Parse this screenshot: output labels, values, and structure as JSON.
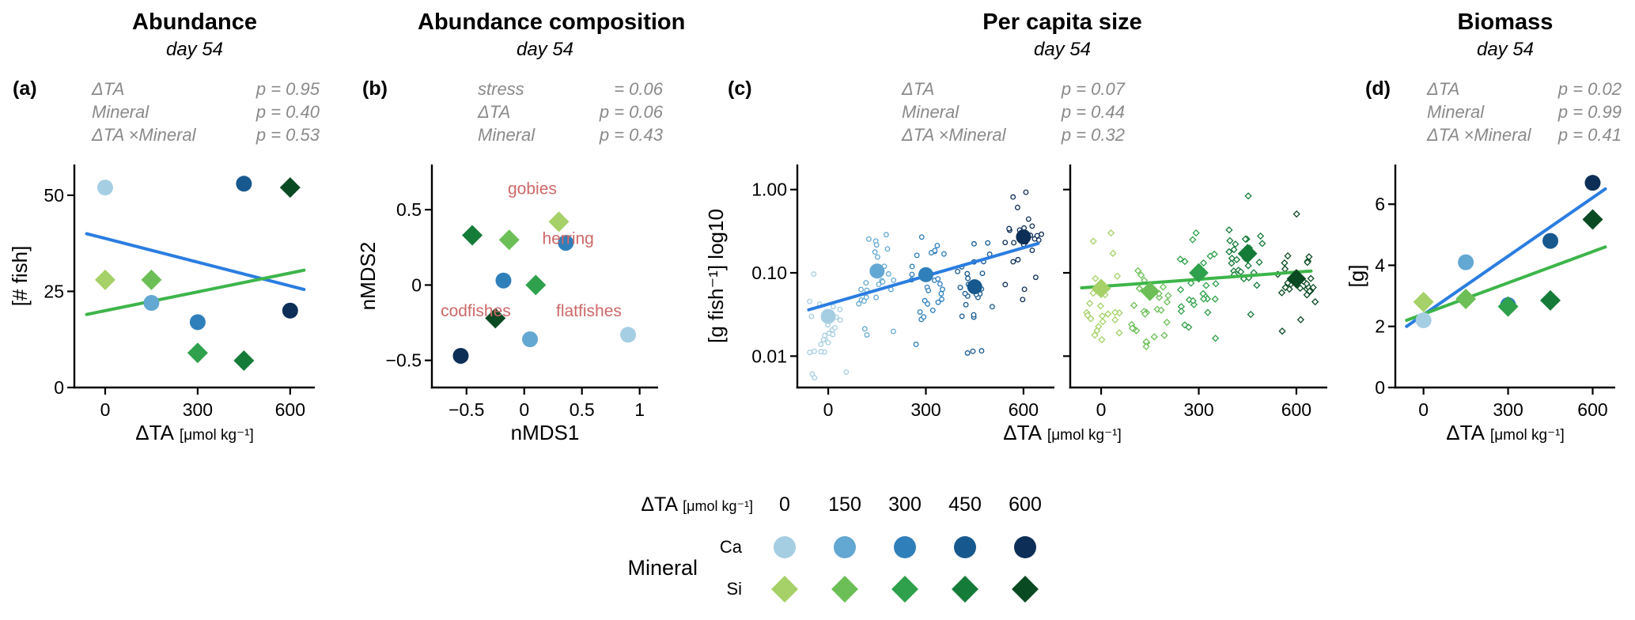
{
  "colors": {
    "ca_levels": [
      "#a6cee3",
      "#63a8d2",
      "#2f7fba",
      "#17598f",
      "#0d2f57"
    ],
    "si_levels": [
      "#a5d168",
      "#6cbf57",
      "#2fa04b",
      "#157b38",
      "#0a4a22"
    ],
    "blue_line": "#2b7de0",
    "green_line": "#3db54a",
    "stats_text": "#8a8a8a",
    "species_label": "#cd6868",
    "axis": "#000000"
  },
  "chart_data": [
    {
      "id": "a",
      "letter": "(a)",
      "type": "scatter",
      "title": "Abundance",
      "subtitle": "day 54",
      "stats": [
        {
          "label": "ΔTA",
          "value": "p = 0.95"
        },
        {
          "label": "Mineral",
          "value": "p = 0.40"
        },
        {
          "label": "ΔTA ×Mineral",
          "value": "p = 0.53"
        }
      ],
      "xlabel": "ΔTA",
      "xlabel_unit": "[μmol kg⁻¹]",
      "ylabel": "[# fish]",
      "xlim": [
        -100,
        680
      ],
      "ylim": [
        0,
        58
      ],
      "xticks": [
        {
          "v": 0,
          "label": "0"
        },
        {
          "v": 300,
          "label": "300"
        },
        {
          "v": 600,
          "label": "600"
        }
      ],
      "yticks": [
        {
          "v": 0,
          "label": "0"
        },
        {
          "v": 25,
          "label": "25"
        },
        {
          "v": 50,
          "label": "50"
        }
      ],
      "series": [
        {
          "name": "Ca",
          "mineral": "ca",
          "marker": "circle",
          "points": [
            {
              "x": 0,
              "y": 52,
              "level": 0
            },
            {
              "x": 150,
              "y": 22,
              "level": 1
            },
            {
              "x": 300,
              "y": 17,
              "level": 2
            },
            {
              "x": 450,
              "y": 53,
              "level": 3
            },
            {
              "x": 600,
              "y": 20,
              "level": 4
            }
          ]
        },
        {
          "name": "Si",
          "mineral": "si",
          "marker": "diamond",
          "points": [
            {
              "x": 0,
              "y": 28,
              "level": 0
            },
            {
              "x": 150,
              "y": 28,
              "level": 1
            },
            {
              "x": 300,
              "y": 9,
              "level": 2
            },
            {
              "x": 450,
              "y": 7,
              "level": 3
            },
            {
              "x": 600,
              "y": 52,
              "level": 4
            }
          ]
        }
      ],
      "trend_lines": [
        {
          "color": "blue_line",
          "x1": -60,
          "y1": 40,
          "x2": 645,
          "y2": 25.5
        },
        {
          "color": "green_line",
          "x1": -60,
          "y1": 19,
          "x2": 645,
          "y2": 30.5
        }
      ]
    },
    {
      "id": "b",
      "letter": "(b)",
      "type": "scatter",
      "title": "Abundance composition",
      "subtitle": "day 54",
      "stats": [
        {
          "label": "stress",
          "value": "= 0.06"
        },
        {
          "label": "ΔTA",
          "value": "p = 0.06"
        },
        {
          "label": "Mineral",
          "value": "p = 0.43"
        }
      ],
      "xlabel": "nMDS1",
      "ylabel": "nMDS2",
      "xlim": [
        -0.8,
        1.16
      ],
      "ylim": [
        -0.68,
        0.8
      ],
      "xticks": [
        {
          "v": -0.5,
          "label": "−0.5"
        },
        {
          "v": 0,
          "label": "0"
        },
        {
          "v": 0.5,
          "label": "0.5"
        },
        {
          "v": 1,
          "label": "1"
        }
      ],
      "yticks": [
        {
          "v": -0.5,
          "label": "−0.5"
        },
        {
          "v": 0,
          "label": "0"
        },
        {
          "v": 0.5,
          "label": "0.5"
        }
      ],
      "species_labels": [
        {
          "text": "gobies",
          "x": 0.07,
          "y": 0.64
        },
        {
          "text": "herring",
          "x": 0.38,
          "y": 0.31
        },
        {
          "text": "codfishes",
          "x": -0.42,
          "y": -0.17
        },
        {
          "text": "flatfishes",
          "x": 0.56,
          "y": -0.17
        }
      ],
      "series": [
        {
          "name": "Ca",
          "mineral": "ca",
          "marker": "circle",
          "points": [
            {
              "x": 0.36,
              "y": 0.28,
              "level": 2
            },
            {
              "x": -0.18,
              "y": 0.03,
              "level": 2
            },
            {
              "x": 0.05,
              "y": -0.36,
              "level": 1
            },
            {
              "x": -0.55,
              "y": -0.47,
              "level": 4
            },
            {
              "x": 0.9,
              "y": -0.33,
              "level": 0
            }
          ]
        },
        {
          "name": "Si",
          "mineral": "si",
          "marker": "diamond",
          "points": [
            {
              "x": -0.45,
              "y": 0.33,
              "level": 3
            },
            {
              "x": -0.13,
              "y": 0.3,
              "level": 1
            },
            {
              "x": 0.3,
              "y": 0.42,
              "level": 0
            },
            {
              "x": 0.1,
              "y": 0.0,
              "level": 2
            },
            {
              "x": -0.25,
              "y": -0.22,
              "level": 4
            }
          ]
        }
      ]
    },
    {
      "id": "c",
      "letter": "(c)",
      "type": "scatter",
      "title": "Per capita size",
      "subtitle": "day 54",
      "stats": [
        {
          "label": "ΔTA",
          "value": "p = 0.07"
        },
        {
          "label": "Mineral",
          "value": "p = 0.44"
        },
        {
          "label": "ΔTA ×Mineral",
          "value": "p = 0.32"
        }
      ],
      "xlabel": "ΔTA",
      "xlabel_unit": "[μmol kg⁻¹]",
      "ylabel": "[g fish⁻¹] log10",
      "log_y": true,
      "xlim": [
        -95,
        695
      ],
      "ylim": [
        0.0042,
        2.0
      ],
      "xticks": [
        {
          "v": 0,
          "label": "0"
        },
        {
          "v": 300,
          "label": "300"
        },
        {
          "v": 600,
          "label": "600"
        }
      ],
      "yticks": [
        {
          "v": 0.01,
          "label": "0.01"
        },
        {
          "v": 0.1,
          "label": "0.10"
        },
        {
          "v": 1,
          "label": "1.00"
        }
      ],
      "x_levels": [
        0,
        150,
        300,
        450,
        600
      ],
      "facets": [
        {
          "name": "Ca",
          "mineral": "ca",
          "marker": "circle",
          "means": [
            0.03,
            0.105,
            0.095,
            0.068,
            0.27
          ],
          "trend": {
            "color": "blue_line",
            "y_at_xmin": 0.036,
            "y_at_xmax": 0.225
          }
        },
        {
          "name": "Si",
          "mineral": "si",
          "marker": "diamond",
          "means": [
            0.065,
            0.06,
            0.1,
            0.17,
            0.085
          ],
          "trend": {
            "color": "green_line",
            "y_at_xmin": 0.066,
            "y_at_xmax": 0.105
          }
        }
      ],
      "jitter": {
        "points_per_level": 26,
        "x_spread": 58,
        "log10_sd": 0.31
      }
    },
    {
      "id": "d",
      "letter": "(d)",
      "type": "scatter",
      "title": "Biomass",
      "subtitle": "day 54",
      "stats": [
        {
          "label": "ΔTA",
          "value": "p = 0.02"
        },
        {
          "label": "Mineral",
          "value": "p = 0.99"
        },
        {
          "label": "ΔTA ×Mineral",
          "value": "p = 0.41"
        }
      ],
      "xlabel": "ΔTA",
      "xlabel_unit": "[μmol kg⁻¹]",
      "ylabel": "[g]",
      "xlim": [
        -100,
        680
      ],
      "ylim": [
        0,
        7.3
      ],
      "xticks": [
        {
          "v": 0,
          "label": "0"
        },
        {
          "v": 300,
          "label": "300"
        },
        {
          "v": 600,
          "label": "600"
        }
      ],
      "yticks": [
        {
          "v": 0,
          "label": "0"
        },
        {
          "v": 2,
          "label": "2"
        },
        {
          "v": 4,
          "label": "4"
        },
        {
          "v": 6,
          "label": "6"
        }
      ],
      "series": [
        {
          "name": "Ca",
          "mineral": "ca",
          "marker": "circle",
          "points": [
            {
              "x": 0,
              "y": 2.2,
              "level": 0
            },
            {
              "x": 150,
              "y": 4.1,
              "level": 1
            },
            {
              "x": 300,
              "y": 2.7,
              "level": 2
            },
            {
              "x": 450,
              "y": 4.8,
              "level": 3
            },
            {
              "x": 600,
              "y": 6.7,
              "level": 4
            }
          ]
        },
        {
          "name": "Si",
          "mineral": "si",
          "marker": "diamond",
          "points": [
            {
              "x": 0,
              "y": 2.8,
              "level": 0
            },
            {
              "x": 150,
              "y": 2.9,
              "level": 1
            },
            {
              "x": 300,
              "y": 2.65,
              "level": 2
            },
            {
              "x": 450,
              "y": 2.85,
              "level": 3
            },
            {
              "x": 600,
              "y": 5.5,
              "level": 4
            }
          ]
        }
      ],
      "trend_lines": [
        {
          "color": "blue_line",
          "x1": -60,
          "y1": 2.0,
          "x2": 645,
          "y2": 6.5
        },
        {
          "color": "green_line",
          "x1": -60,
          "y1": 2.2,
          "x2": 645,
          "y2": 4.6
        }
      ]
    }
  ],
  "legend": {
    "delta_ta_label": "ΔTA",
    "delta_ta_unit": "[μmol kg⁻¹]",
    "levels": [
      "0",
      "150",
      "300",
      "450",
      "600"
    ],
    "mineral_label": "Mineral",
    "minerals": [
      {
        "name": "Ca",
        "marker": "circle",
        "palette": "ca_levels"
      },
      {
        "name": "Si",
        "marker": "diamond",
        "palette": "si_levels"
      }
    ]
  }
}
